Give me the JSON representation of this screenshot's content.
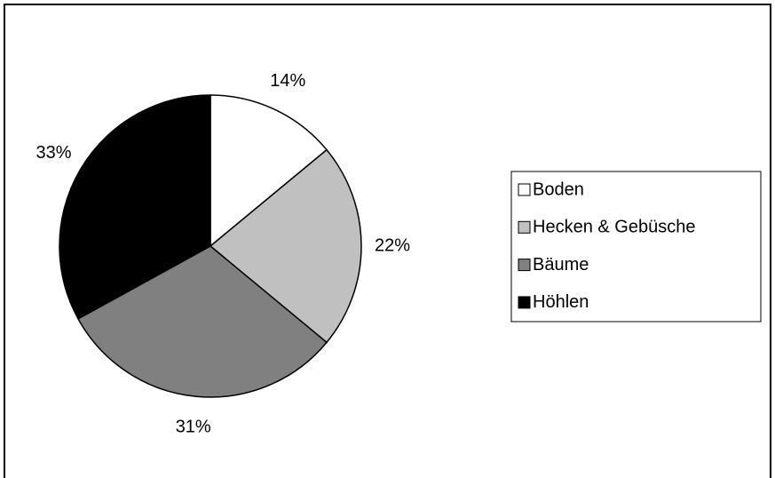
{
  "chart_data": {
    "type": "pie",
    "categories": [
      "Boden",
      "Hecken & Gebüsche",
      "Bäume",
      "Höhlen"
    ],
    "values": [
      14,
      22,
      31,
      33
    ],
    "value_labels": [
      "14%",
      "22%",
      "31%",
      "33%"
    ],
    "colors": [
      "#ffffff",
      "#c0c0c0",
      "#808080",
      "#000000"
    ],
    "legend": "right"
  }
}
